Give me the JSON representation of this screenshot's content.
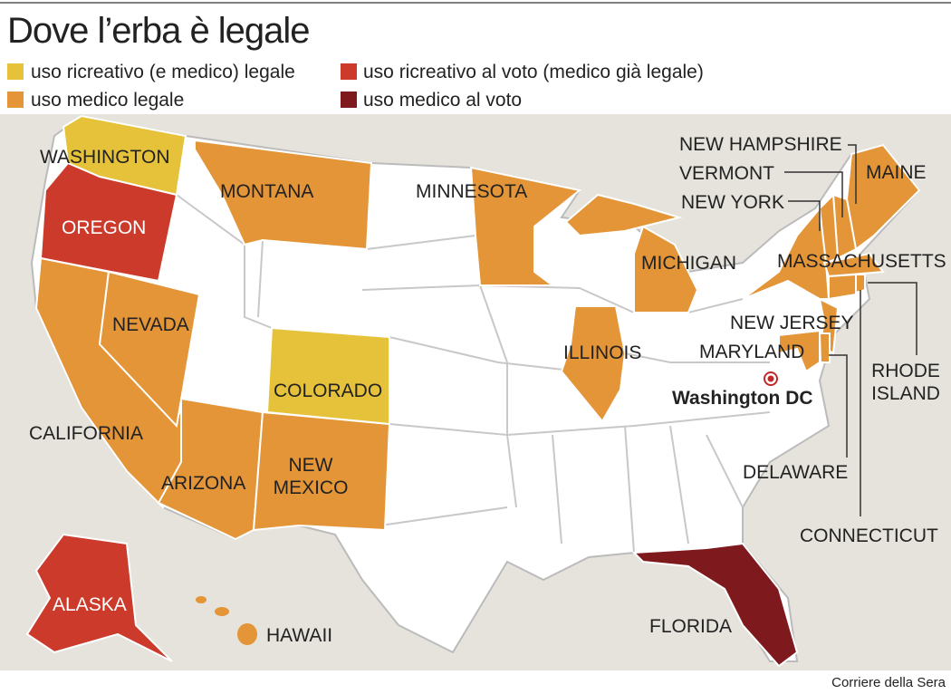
{
  "header": {
    "title": "Dove l’erba è legale"
  },
  "legend": [
    {
      "label": "uso ricreativo (e medico) legale",
      "color": "#e6c23b"
    },
    {
      "label": "uso ricreativo al voto (medico già legale)",
      "color": "#cc3a2b"
    },
    {
      "label": "uso medico legale",
      "color": "#e39538"
    },
    {
      "label": "uso medico al voto",
      "color": "#7e1a1e"
    }
  ],
  "states": [
    {
      "label": "WASHINGTON",
      "category": 0
    },
    {
      "label": "OREGON",
      "category": 1
    },
    {
      "label": "CALIFORNIA",
      "category": 2
    },
    {
      "label": "NEVADA",
      "category": 2
    },
    {
      "label": "MONTANA",
      "category": 2
    },
    {
      "label": "ARIZONA",
      "category": 2
    },
    {
      "label": [
        "NEW",
        "MEXICO"
      ],
      "category": 2
    },
    {
      "label": "COLORADO",
      "category": 0
    },
    {
      "label": "MINNESOTA",
      "category": 2
    },
    {
      "label": "MICHIGAN",
      "category": 2
    },
    {
      "label": "ILLINOIS",
      "category": 2
    },
    {
      "label": "NEW YORK",
      "category": 2
    },
    {
      "label": "MAINE",
      "category": 2
    },
    {
      "label": "NEW HAMPSHIRE",
      "category": 2
    },
    {
      "label": "VERMONT",
      "category": 2
    },
    {
      "label": "MASSACHUSETTS",
      "category": 2
    },
    {
      "label": "CONNECTICUT",
      "category": 2
    },
    {
      "label": [
        "RHODE",
        "ISLAND"
      ],
      "category": 2
    },
    {
      "label": "NEW JERSEY",
      "category": 2
    },
    {
      "label": "MARYLAND",
      "category": 2
    },
    {
      "label": "DELAWARE",
      "category": 2
    },
    {
      "label": "FLORIDA",
      "category": 3
    },
    {
      "label": "ALASKA",
      "category": 1
    },
    {
      "label": "HAWAII",
      "category": 2
    }
  ],
  "capital": {
    "label": "Washington DC"
  },
  "credit": "Corriere della Sera"
}
